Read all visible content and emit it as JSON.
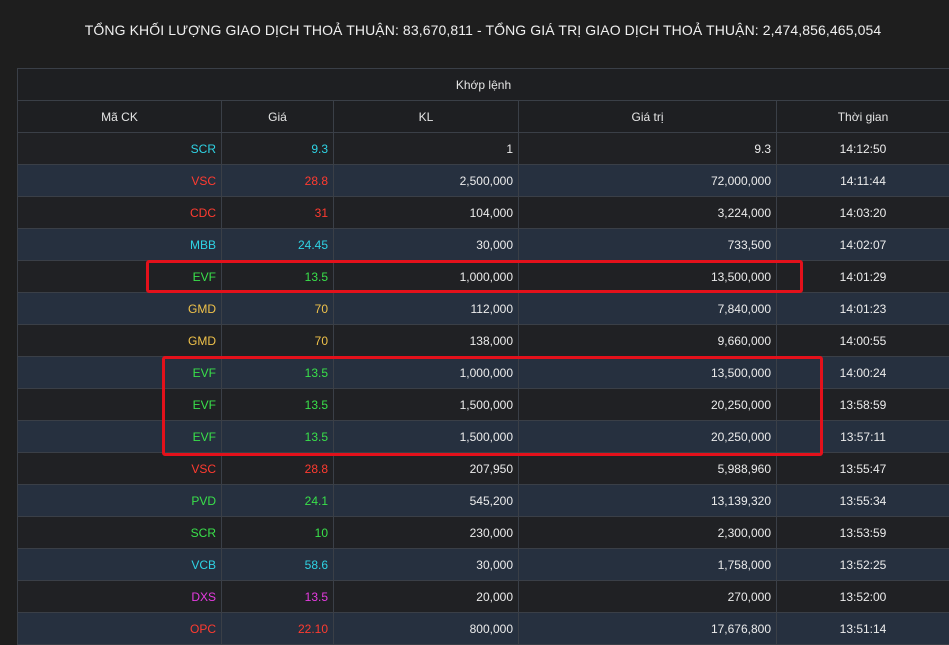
{
  "summary": "TỔNG KHỐI LƯỢNG GIAO DỊCH THOẢ THUẬN: 83,670,811 - TỔNG GIÁ TRỊ GIAO DỊCH THOẢ THUẬN: 2,474,856,465,054",
  "table": {
    "group_header": "Khớp lệnh",
    "columns": [
      "Mã CK",
      "Giá",
      "KL",
      "Giá trị",
      "Thời gian"
    ],
    "rows": [
      {
        "code": "SCR",
        "price": "9.3",
        "volume": "1",
        "value": "9.3",
        "time": "14:12:50",
        "color": "cyan"
      },
      {
        "code": "VSC",
        "price": "28.8",
        "volume": "2,500,000",
        "value": "72,000,000",
        "time": "14:11:44",
        "color": "red"
      },
      {
        "code": "CDC",
        "price": "31",
        "volume": "104,000",
        "value": "3,224,000",
        "time": "14:03:20",
        "color": "red"
      },
      {
        "code": "MBB",
        "price": "24.45",
        "volume": "30,000",
        "value": "733,500",
        "time": "14:02:07",
        "color": "cyan"
      },
      {
        "code": "EVF",
        "price": "13.5",
        "volume": "1,000,000",
        "value": "13,500,000",
        "time": "14:01:29",
        "color": "green"
      },
      {
        "code": "GMD",
        "price": "70",
        "volume": "112,000",
        "value": "7,840,000",
        "time": "14:01:23",
        "color": "yellow"
      },
      {
        "code": "GMD",
        "price": "70",
        "volume": "138,000",
        "value": "9,660,000",
        "time": "14:00:55",
        "color": "yellow"
      },
      {
        "code": "EVF",
        "price": "13.5",
        "volume": "1,000,000",
        "value": "13,500,000",
        "time": "14:00:24",
        "color": "green"
      },
      {
        "code": "EVF",
        "price": "13.5",
        "volume": "1,500,000",
        "value": "20,250,000",
        "time": "13:58:59",
        "color": "green"
      },
      {
        "code": "EVF",
        "price": "13.5",
        "volume": "1,500,000",
        "value": "20,250,000",
        "time": "13:57:11",
        "color": "green"
      },
      {
        "code": "VSC",
        "price": "28.8",
        "volume": "207,950",
        "value": "5,988,960",
        "time": "13:55:47",
        "color": "red"
      },
      {
        "code": "PVD",
        "price": "24.1",
        "volume": "545,200",
        "value": "13,139,320",
        "time": "13:55:34",
        "color": "green"
      },
      {
        "code": "SCR",
        "price": "10",
        "volume": "230,000",
        "value": "2,300,000",
        "time": "13:53:59",
        "color": "green"
      },
      {
        "code": "VCB",
        "price": "58.6",
        "volume": "30,000",
        "value": "1,758,000",
        "time": "13:52:25",
        "color": "cyan"
      },
      {
        "code": "DXS",
        "price": "13.5",
        "volume": "20,000",
        "value": "270,000",
        "time": "13:52:00",
        "color": "magenta"
      },
      {
        "code": "OPC",
        "price": "22.10",
        "volume": "800,000",
        "value": "17,676,800",
        "time": "13:51:14",
        "color": "red"
      }
    ]
  },
  "colors": {
    "cyan": "#2fd3e4",
    "red": "#ff3b30",
    "green": "#39e04a",
    "yellow": "#f0c24a",
    "magenta": "#e63be0",
    "highlight": "#e3111b"
  }
}
